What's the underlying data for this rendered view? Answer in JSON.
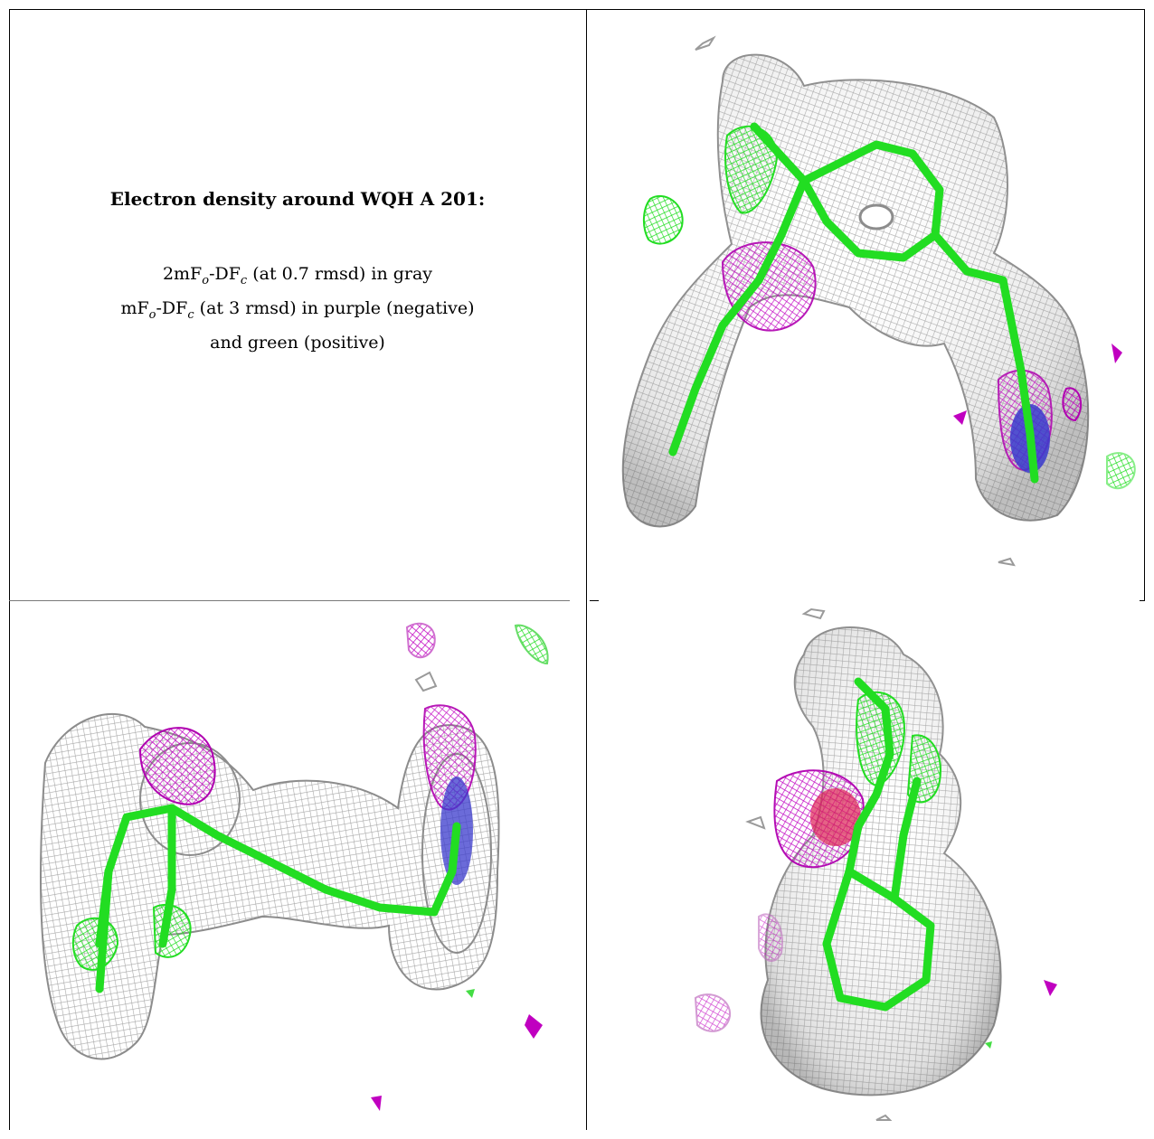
{
  "caption": {
    "title": "Electron density around WQH A 201:",
    "line1": {
      "a": "2mF",
      "a_sub": "o",
      "b": "-DF",
      "b_sub": "c",
      "rest": " (at 0.7 rmsd) in gray"
    },
    "line2": {
      "a": "mF",
      "a_sub": "o",
      "b": "-DF",
      "b_sub": "c",
      "rest": " (at 3 rmsd) in purple (negative)"
    },
    "line3": "and green (positive)"
  },
  "colors": {
    "map_2fofc": "#a8a8a8",
    "map_fofc_negative": "#c000c0",
    "map_fofc_positive": "#22dd22",
    "nitrogen": "#3a3acc",
    "oxygen": "#dd2255",
    "rule": "#000000"
  },
  "panels": [
    {
      "name": "view-top-right",
      "content": "ligand-density-front-view"
    },
    {
      "name": "view-bottom-left",
      "content": "ligand-density-side-view"
    },
    {
      "name": "view-bottom-right",
      "content": "ligand-density-end-view"
    }
  ]
}
